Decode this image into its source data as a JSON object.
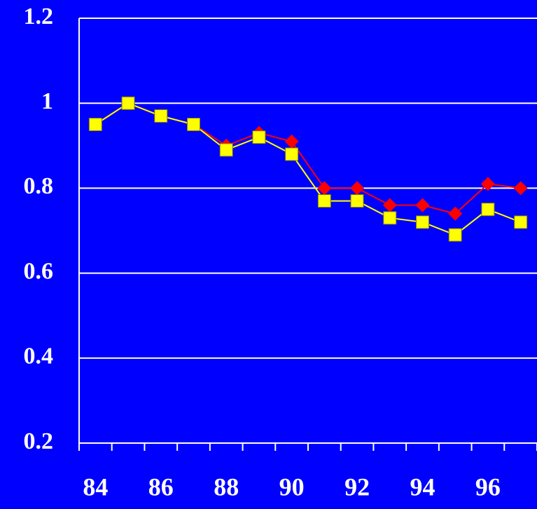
{
  "chart_data": {
    "type": "line",
    "categories": [
      "84",
      null,
      "86",
      null,
      "88",
      null,
      "90",
      null,
      "92",
      null,
      "94",
      null,
      "96",
      null
    ],
    "series": [
      {
        "color": "#ff0000",
        "marker": "diamond",
        "values": [
          0.95,
          1.0,
          0.97,
          0.95,
          0.9,
          0.93,
          0.91,
          0.8,
          0.8,
          0.76,
          0.76,
          0.74,
          0.81,
          0.8
        ]
      },
      {
        "color": "#ffff00",
        "marker": "square",
        "values": [
          0.95,
          1.0,
          0.97,
          0.95,
          0.89,
          0.92,
          0.88,
          0.77,
          0.77,
          0.73,
          0.72,
          0.69,
          0.75,
          0.72
        ]
      }
    ],
    "ylim": [
      0.2,
      1.2
    ],
    "yticks": [
      0.2,
      0.4,
      0.6,
      0.8,
      1,
      1.2
    ],
    "grid": true
  }
}
